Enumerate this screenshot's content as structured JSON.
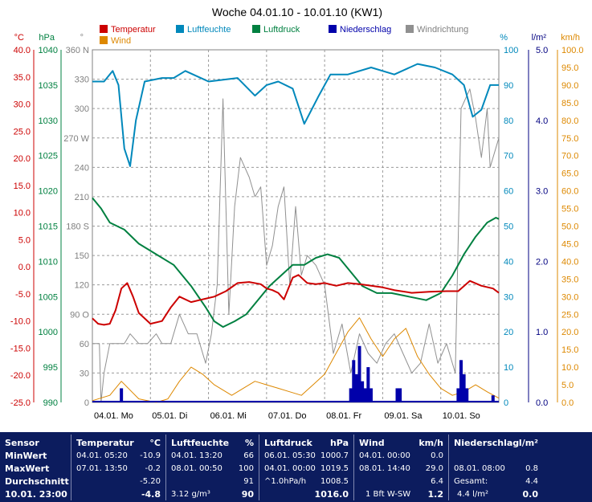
{
  "chart_data": {
    "type": "line",
    "title": "Woche 04.01.10 - 10.01.10 (KW1)",
    "legend": [
      {
        "name": "Temperatur",
        "color": "#cc0000"
      },
      {
        "name": "Luftfeuchte",
        "color": "#0088bb"
      },
      {
        "name": "Luftdruck",
        "color": "#008040"
      },
      {
        "name": "Niederschlag",
        "color": "#0000aa"
      },
      {
        "name": "Windrichtung",
        "color": "#909090"
      },
      {
        "name": "Wind",
        "color": "#dd8800"
      }
    ],
    "axes": {
      "temp": {
        "unit": "°C",
        "min": -25,
        "max": 40,
        "ticks": [
          "40.0",
          "35.0",
          "30.0",
          "25.0",
          "20.0",
          "15.0",
          "10.0",
          "5.0",
          "0.0",
          "-5.0",
          "-10.0",
          "-15.0",
          "-20.0",
          "-25.0"
        ],
        "color": "#cc0000"
      },
      "pressure": {
        "unit": "hPa",
        "min": 990,
        "max": 1040,
        "ticks": [
          "1040",
          "1035",
          "1030",
          "1025",
          "1020",
          "1015",
          "1010",
          "1005",
          "1000",
          "995",
          "990"
        ],
        "color": "#008040"
      },
      "direction": {
        "unit": "°",
        "min": 0,
        "max": 360,
        "ticks": [
          "360 N",
          "330",
          "300",
          "270 W",
          "240",
          "210",
          "180 S",
          "150",
          "120",
          "90 O",
          "60",
          "30",
          "0"
        ],
        "color": "#808080"
      },
      "humidity": {
        "unit": "%",
        "min": 0,
        "max": 100,
        "ticks": [
          "100",
          "90",
          "80",
          "70",
          "60",
          "50",
          "40",
          "30",
          "20",
          "10",
          "0"
        ],
        "color": "#0088bb"
      },
      "rain": {
        "unit": "l/m²",
        "min": 0,
        "max": 5,
        "ticks": [
          "5.0",
          "4.0",
          "3.0",
          "2.0",
          "1.0",
          "0.0"
        ],
        "color": "#000080"
      },
      "wind": {
        "unit": "km/h",
        "min": 0,
        "max": 100,
        "ticks": [
          "100.0",
          "95.0",
          "90.0",
          "85.0",
          "80.0",
          "75.0",
          "70.0",
          "65.0",
          "60.0",
          "55.0",
          "50.0",
          "45.0",
          "40.0",
          "35.0",
          "30.0",
          "25.0",
          "20.0",
          "15.0",
          "10.0",
          "5.0",
          "0.0"
        ],
        "color": "#dd8800"
      }
    },
    "x_labels": [
      "04.01. Mo",
      "05.01. Di",
      "06.01. Mi",
      "07.01. Do",
      "08.01. Fr",
      "09.01. Sa",
      "10.01. So"
    ],
    "grid": true,
    "series": [
      {
        "name": "Temperatur",
        "axis": "temp",
        "x": [
          0,
          0.1,
          0.2,
          0.3,
          0.4,
          0.5,
          0.6,
          0.7,
          0.8,
          1.0,
          1.2,
          1.35,
          1.5,
          1.7,
          1.9,
          2.1,
          2.3,
          2.5,
          2.7,
          2.9,
          3.0,
          3.1,
          3.2,
          3.3,
          3.45,
          3.55,
          3.7,
          3.85,
          4.0,
          4.2,
          4.4,
          4.6,
          4.8,
          5.0,
          5.2,
          5.5,
          5.8,
          6.1,
          6.3,
          6.5,
          6.7,
          6.9,
          7.0
        ],
        "y": [
          -9.5,
          -10.5,
          -10.7,
          -10.5,
          -8.0,
          -4.0,
          -3.0,
          -5.5,
          -8.5,
          -10.5,
          -10.0,
          -7.5,
          -5.5,
          -6.5,
          -6.0,
          -5.5,
          -4.5,
          -3.0,
          -2.8,
          -3.2,
          -4.0,
          -4.3,
          -4.8,
          -6.0,
          -2.0,
          -1.5,
          -3.0,
          -3.2,
          -3.0,
          -3.5,
          -3.0,
          -3.2,
          -3.5,
          -3.8,
          -4.3,
          -4.8,
          -4.6,
          -4.5,
          -4.5,
          -2.6,
          -3.5,
          -4.0,
          -4.8
        ]
      },
      {
        "name": "Luftfeuchte",
        "axis": "humidity",
        "x": [
          0,
          0.2,
          0.35,
          0.45,
          0.55,
          0.65,
          0.75,
          0.9,
          1.2,
          1.4,
          1.6,
          2.0,
          2.5,
          2.8,
          3.0,
          3.2,
          3.45,
          3.65,
          3.9,
          4.1,
          4.4,
          4.8,
          5.2,
          5.6,
          5.9,
          6.2,
          6.4,
          6.55,
          6.7,
          6.85,
          7.0
        ],
        "y": [
          91,
          91,
          94,
          90,
          72,
          67,
          80,
          91,
          92,
          92,
          94,
          91,
          92,
          87,
          90,
          91,
          89,
          79,
          87,
          93,
          93,
          95,
          93,
          96,
          95,
          93,
          90,
          81,
          83,
          90,
          90
        ]
      },
      {
        "name": "Luftdruck",
        "axis": "pressure",
        "x": [
          0,
          0.15,
          0.3,
          0.55,
          0.8,
          1.1,
          1.4,
          1.7,
          1.95,
          2.1,
          2.25,
          2.45,
          2.65,
          2.85,
          3.05,
          3.25,
          3.45,
          3.65,
          3.85,
          4.05,
          4.25,
          4.45,
          4.65,
          4.9,
          5.15,
          5.45,
          5.75,
          6.0,
          6.2,
          6.4,
          6.6,
          6.8,
          6.95,
          7.0
        ],
        "y": [
          1019,
          1017.5,
          1015.5,
          1014.5,
          1012.5,
          1011,
          1009.5,
          1006.5,
          1003.5,
          1001.5,
          1000.7,
          1001.5,
          1002.5,
          1004.5,
          1006.5,
          1008,
          1009.5,
          1009.5,
          1010.5,
          1011,
          1010.5,
          1008.5,
          1006.5,
          1005.5,
          1005.5,
          1005,
          1004.5,
          1005.5,
          1008,
          1011,
          1013.5,
          1015.5,
          1016.2,
          1016
        ]
      },
      {
        "name": "Wind",
        "axis": "wind",
        "x": [
          0,
          0.3,
          0.5,
          0.8,
          1.1,
          1.3,
          1.5,
          1.7,
          1.9,
          2.1,
          2.4,
          2.6,
          2.8,
          3.0,
          3.2,
          3.4,
          3.6,
          3.8,
          4.0,
          4.2,
          4.4,
          4.6,
          4.8,
          5.0,
          5.2,
          5.4,
          5.6,
          5.8,
          6.0,
          6.2,
          6.4,
          6.6,
          6.8,
          7.0
        ],
        "y": [
          0.5,
          2,
          6,
          1,
          0,
          1,
          6,
          10,
          8,
          5,
          2,
          4,
          6,
          5,
          4,
          3,
          2,
          5,
          8,
          14,
          20,
          24,
          18,
          13,
          18,
          21,
          13,
          8,
          4,
          2,
          3,
          5,
          3,
          1.2
        ]
      },
      {
        "name": "Windrichtung",
        "axis": "direction",
        "x": [
          0,
          0.12,
          0.15,
          0.2,
          0.3,
          0.45,
          0.55,
          0.65,
          0.8,
          0.95,
          1.1,
          1.2,
          1.35,
          1.5,
          1.65,
          1.8,
          1.95,
          2.05,
          2.15,
          2.25,
          2.35,
          2.45,
          2.55,
          2.7,
          2.8,
          2.9,
          3.0,
          3.1,
          3.2,
          3.3,
          3.4,
          3.5,
          3.6,
          3.7,
          3.85,
          4.0,
          4.15,
          4.3,
          4.45,
          4.6,
          4.75,
          4.9,
          5.05,
          5.2,
          5.35,
          5.5,
          5.65,
          5.8,
          5.95,
          6.1,
          6.25,
          6.35,
          6.5,
          6.6,
          6.7,
          6.8,
          6.85,
          7.0
        ],
        "y": [
          60,
          60,
          0,
          30,
          60,
          60,
          60,
          70,
          60,
          60,
          70,
          60,
          60,
          90,
          70,
          70,
          40,
          70,
          120,
          310,
          90,
          200,
          250,
          230,
          210,
          220,
          140,
          160,
          200,
          220,
          120,
          200,
          130,
          150,
          140,
          120,
          50,
          80,
          30,
          70,
          50,
          40,
          60,
          70,
          50,
          30,
          40,
          80,
          40,
          60,
          30,
          300,
          320,
          290,
          250,
          300,
          240,
          270
        ]
      },
      {
        "name": "Niederschlag",
        "axis": "rain",
        "type": "bar",
        "x": [
          0.5,
          4.45,
          4.5,
          4.55,
          4.6,
          4.65,
          4.7,
          4.75,
          4.8,
          5.25,
          5.3,
          6.3,
          6.35,
          6.4,
          6.45,
          6.9
        ],
        "y": [
          0.2,
          0.2,
          0.6,
          0.4,
          0.8,
          0.3,
          0.2,
          0.5,
          0.2,
          0.2,
          0.2,
          0.2,
          0.6,
          0.4,
          0.2,
          0.1
        ]
      }
    ]
  },
  "stats": {
    "headers": {
      "sensor": "Sensor",
      "temp": "Temperatur",
      "temp_unit": "°C",
      "hum": "Luftfeuchte",
      "hum_unit": "%",
      "press": "Luftdruck",
      "press_unit": "hPa",
      "wind": "Wind",
      "wind_unit": "km/h",
      "rain": "Niederschlag",
      "rain_unit": "l/m²"
    },
    "row_labels": {
      "min": "MinWert",
      "max": "MaxWert",
      "avg": "Durchschnitt",
      "now": "10.01. 23:00"
    },
    "temp": {
      "min_time": "04.01. 05:20",
      "min_val": "-10.9",
      "max_time": "07.01. 13:50",
      "max_val": "-0.2",
      "avg_val": "-5.20",
      "now_val": "-4.8"
    },
    "hum": {
      "min_time": "04.01. 13:20",
      "min_val": "66",
      "max_time": "08.01. 00:50",
      "max_val": "100",
      "avg_val": "91",
      "abs": "3.12 g/m³",
      "now_val": "90"
    },
    "press": {
      "min_time": "06.01. 05:30",
      "min_val": "1000.7",
      "max_time": "04.01. 00:00",
      "max_val": "1019.5",
      "trend_label": "^1.0hPa/h",
      "trend_val": "1008.5",
      "now_val": "1016.0"
    },
    "wind": {
      "min_time": "04.01. 00:00",
      "min_val": "0.0",
      "max_time": "08.01. 14:40",
      "max_val": "29.0",
      "avg_val": "6.4",
      "now_label": "1 Bft W-SW",
      "now_val": "1.2"
    },
    "rain": {
      "max_time": "08.01. 08:00",
      "max_val": "0.8",
      "total_label": "Gesamt:",
      "total_val": "4.4",
      "now_label": "4.4 l/m²",
      "now_val": "0.0"
    }
  }
}
